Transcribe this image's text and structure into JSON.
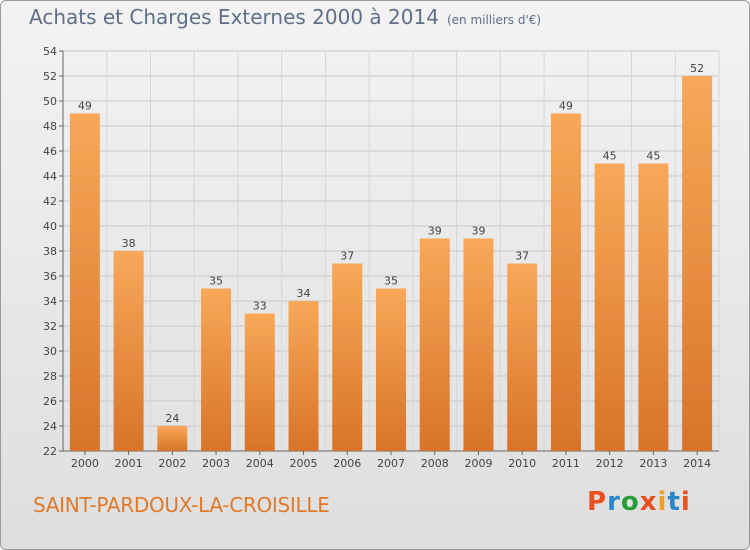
{
  "header": {
    "title": "Achats et Charges Externes 2000 à 2014",
    "unit": "(en milliers d'€)"
  },
  "footer": {
    "commune": "SAINT-PARDOUX-LA-CROISILLE",
    "logo_text": "Proxiti"
  },
  "colors": {
    "bar_top": "#f8a858",
    "bar_bottom": "#d8742a",
    "title": "#5f6f88",
    "commune": "#e07a2a",
    "logo": [
      "#e8501e",
      "#2a88c8",
      "#2a9a3a",
      "#e8501e",
      "#f0a020",
      "#2a88c8",
      "#e8501e"
    ]
  },
  "chart_data": {
    "type": "bar",
    "title": "Achats et Charges Externes 2000 à 2014",
    "subtitle": "(en milliers d'€)",
    "categories": [
      "2000",
      "2001",
      "2002",
      "2003",
      "2004",
      "2005",
      "2006",
      "2007",
      "2008",
      "2009",
      "2010",
      "2011",
      "2012",
      "2013",
      "2014"
    ],
    "values": [
      49,
      38,
      24,
      35,
      33,
      34,
      37,
      35,
      39,
      39,
      37,
      49,
      45,
      45,
      52
    ],
    "ylim": [
      22,
      54
    ],
    "yticks": [
      22,
      24,
      26,
      28,
      30,
      32,
      34,
      36,
      38,
      40,
      42,
      44,
      46,
      48,
      50,
      52,
      54
    ],
    "grid": true,
    "legend": "none"
  }
}
